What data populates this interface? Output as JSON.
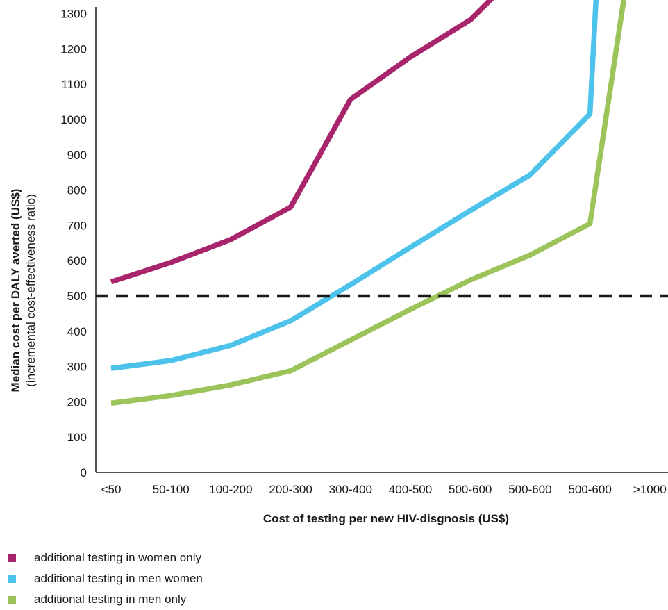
{
  "chart_data": {
    "type": "line",
    "xlabel": "Cost of testing per new HIV-disgnosis (US$)",
    "ylabel": "Median cost per DALY averted (US$)",
    "ylabel_sub": "(incremental cost-effectiveness ratio)",
    "categories": [
      "<50",
      "50-100",
      "100-200",
      "200-300",
      "300-400",
      "400-500",
      "500-600",
      "500-600",
      "500-600",
      ">1000"
    ],
    "ylim": [
      0,
      1320
    ],
    "yticks": [
      0,
      100,
      200,
      300,
      400,
      500,
      600,
      700,
      800,
      900,
      1000,
      1100,
      1200,
      1300
    ],
    "threshold": {
      "value": 500,
      "style": "dashed",
      "color": "#1a1a1a"
    },
    "series": [
      {
        "name": "additional testing in women only",
        "color": "#a8246b",
        "points": [
          [
            0,
            540
          ],
          [
            1,
            595
          ],
          [
            2,
            660
          ],
          [
            3,
            752
          ],
          [
            4,
            1057
          ],
          [
            5,
            1177
          ],
          [
            6,
            1282
          ],
          [
            6.7,
            1400
          ]
        ]
      },
      {
        "name": "additional testing in men women",
        "color": "#4dc3ec",
        "points": [
          [
            0,
            295
          ],
          [
            1,
            317
          ],
          [
            2,
            360
          ],
          [
            3,
            430
          ],
          [
            4,
            532
          ],
          [
            5,
            638
          ],
          [
            6,
            742
          ],
          [
            7,
            843
          ],
          [
            8,
            1016
          ],
          [
            8.12,
            1400
          ]
        ]
      },
      {
        "name": "additional testing in men only",
        "color": "#9dc35b",
        "points": [
          [
            0,
            196
          ],
          [
            1,
            218
          ],
          [
            2,
            248
          ],
          [
            3,
            288
          ],
          [
            4,
            375
          ],
          [
            5,
            462
          ],
          [
            6,
            545
          ],
          [
            7,
            616
          ],
          [
            8,
            705
          ],
          [
            8.62,
            1400
          ]
        ]
      }
    ],
    "legend_position": "bottom-left",
    "grid": false
  }
}
